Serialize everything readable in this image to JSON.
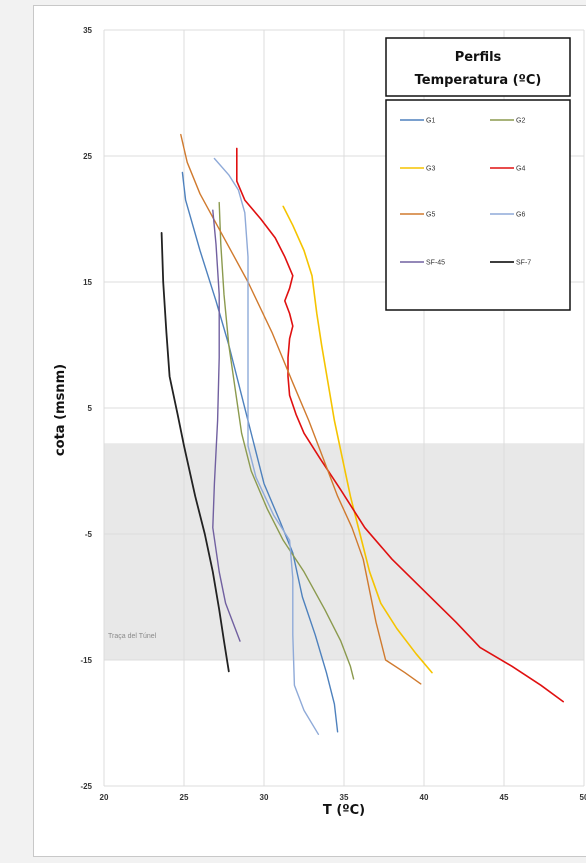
{
  "chart_data": {
    "type": "line",
    "title": "",
    "xlabel": "T  (ºC)",
    "ylabel": "cota (msnm)",
    "xlim": [
      20,
      50
    ],
    "ylim": [
      -25,
      35
    ],
    "x_ticks": [
      "20",
      "25",
      "30",
      "35",
      "40",
      "45",
      "50"
    ],
    "y_ticks": [
      "35",
      "25",
      "15",
      "5",
      "-5",
      "-15",
      "-25"
    ],
    "x_tick_values": [
      20,
      25,
      30,
      35,
      40,
      45,
      50
    ],
    "y_tick_values": [
      35,
      25,
      15,
      5,
      -5,
      -15,
      -25
    ],
    "grid": true,
    "legend": {
      "title_line1": "Perfils",
      "title_line2": "Temperatura (ºC)",
      "placement": "top-right"
    },
    "band": {
      "from": -15,
      "to": 2.2,
      "label": "Traça del Túnel",
      "color": "#e8e8e8"
    },
    "series": [
      {
        "name": "G1",
        "color": "#4e81bd",
        "width": 1.4,
        "points": [
          [
            24.9,
            23.7
          ],
          [
            25.1,
            21.5
          ],
          [
            26.0,
            17.5
          ],
          [
            27.0,
            13.5
          ],
          [
            27.8,
            10.0
          ],
          [
            28.6,
            6.0
          ],
          [
            29.3,
            2.5
          ],
          [
            30.0,
            -1.0
          ],
          [
            31.0,
            -4.0
          ],
          [
            31.8,
            -6.5
          ],
          [
            32.4,
            -10.0
          ],
          [
            33.2,
            -13.0
          ],
          [
            33.9,
            -16.0
          ],
          [
            34.4,
            -18.5
          ],
          [
            34.6,
            -20.7
          ]
        ]
      },
      {
        "name": "G2",
        "color": "#8b9a4e",
        "width": 1.4,
        "points": [
          [
            27.2,
            21.3
          ],
          [
            27.3,
            18.0
          ],
          [
            27.5,
            14.0
          ],
          [
            27.8,
            10.0
          ],
          [
            28.2,
            6.5
          ],
          [
            28.6,
            3.0
          ],
          [
            29.2,
            0.0
          ],
          [
            30.2,
            -3.0
          ],
          [
            31.2,
            -5.5
          ],
          [
            32.5,
            -8.0
          ],
          [
            33.8,
            -11.0
          ],
          [
            34.8,
            -13.5
          ],
          [
            35.4,
            -15.5
          ],
          [
            35.6,
            -16.5
          ]
        ]
      },
      {
        "name": "G3",
        "color": "#f5c400",
        "width": 1.6,
        "points": [
          [
            31.2,
            21.0
          ],
          [
            31.8,
            19.5
          ],
          [
            32.5,
            17.5
          ],
          [
            33.0,
            15.5
          ],
          [
            33.3,
            12.5
          ],
          [
            33.6,
            10.0
          ],
          [
            34.0,
            7.0
          ],
          [
            34.4,
            4.0
          ],
          [
            34.9,
            1.0
          ],
          [
            35.4,
            -2.0
          ],
          [
            36.0,
            -5.0
          ],
          [
            36.6,
            -8.0
          ],
          [
            37.3,
            -10.5
          ],
          [
            38.3,
            -12.5
          ],
          [
            39.5,
            -14.5
          ],
          [
            40.5,
            -16.0
          ]
        ]
      },
      {
        "name": "G4",
        "color": "#e01010",
        "width": 1.6,
        "points": [
          [
            28.3,
            25.6
          ],
          [
            28.3,
            23.0
          ],
          [
            28.8,
            21.5
          ],
          [
            29.8,
            20.0
          ],
          [
            30.7,
            18.5
          ],
          [
            31.3,
            17.0
          ],
          [
            31.8,
            15.5
          ],
          [
            31.6,
            14.5
          ],
          [
            31.3,
            13.5
          ],
          [
            31.6,
            12.5
          ],
          [
            31.8,
            11.5
          ],
          [
            31.6,
            10.5
          ],
          [
            31.5,
            9.0
          ],
          [
            31.5,
            7.5
          ],
          [
            31.6,
            6.0
          ],
          [
            32.0,
            4.5
          ],
          [
            32.5,
            3.0
          ],
          [
            33.5,
            1.0
          ],
          [
            34.8,
            -1.5
          ],
          [
            36.3,
            -4.5
          ],
          [
            38.0,
            -7.0
          ],
          [
            40.0,
            -9.5
          ],
          [
            42.0,
            -12.0
          ],
          [
            43.5,
            -14.0
          ],
          [
            45.5,
            -15.5
          ],
          [
            47.3,
            -17.0
          ],
          [
            48.7,
            -18.3
          ]
        ]
      },
      {
        "name": "G5",
        "color": "#d07a2e",
        "width": 1.4,
        "points": [
          [
            24.8,
            26.7
          ],
          [
            25.2,
            24.5
          ],
          [
            26.0,
            22.0
          ],
          [
            27.5,
            18.5
          ],
          [
            29.0,
            15.0
          ],
          [
            30.5,
            11.0
          ],
          [
            31.8,
            7.0
          ],
          [
            32.8,
            4.0
          ],
          [
            33.7,
            1.0
          ],
          [
            34.6,
            -2.0
          ],
          [
            35.5,
            -4.5
          ],
          [
            36.2,
            -7.0
          ],
          [
            36.6,
            -9.5
          ],
          [
            37.0,
            -12.0
          ],
          [
            37.6,
            -15.0
          ],
          [
            38.8,
            -16.0
          ],
          [
            39.8,
            -16.9
          ]
        ]
      },
      {
        "name": "G6",
        "color": "#8faad8",
        "width": 1.4,
        "points": [
          [
            26.9,
            24.8
          ],
          [
            27.8,
            23.5
          ],
          [
            28.4,
            22.3
          ],
          [
            28.8,
            20.5
          ],
          [
            29.0,
            17.0
          ],
          [
            29.0,
            12.0
          ],
          [
            29.0,
            7.0
          ],
          [
            29.0,
            2.0
          ],
          [
            29.5,
            -0.5
          ],
          [
            30.6,
            -3.5
          ],
          [
            31.6,
            -5.5
          ],
          [
            31.8,
            -8.5
          ],
          [
            31.8,
            -13.0
          ],
          [
            31.9,
            -17.0
          ],
          [
            32.5,
            -19.0
          ],
          [
            33.4,
            -20.9
          ]
        ]
      },
      {
        "name": "SF-45",
        "color": "#7160a0",
        "width": 1.4,
        "points": [
          [
            26.8,
            20.7
          ],
          [
            27.0,
            18.0
          ],
          [
            27.2,
            14.0
          ],
          [
            27.2,
            9.0
          ],
          [
            27.1,
            4.0
          ],
          [
            26.9,
            -1.0
          ],
          [
            26.8,
            -4.5
          ],
          [
            27.2,
            -8.0
          ],
          [
            27.6,
            -10.5
          ],
          [
            28.2,
            -12.5
          ],
          [
            28.5,
            -13.5
          ]
        ]
      },
      {
        "name": "SF-7",
        "color": "#222222",
        "width": 1.8,
        "points": [
          [
            23.6,
            18.9
          ],
          [
            23.7,
            15.0
          ],
          [
            23.9,
            11.0
          ],
          [
            24.1,
            7.5
          ],
          [
            24.6,
            4.5
          ],
          [
            25.0,
            2.0
          ],
          [
            25.7,
            -2.0
          ],
          [
            26.3,
            -5.0
          ],
          [
            26.8,
            -8.0
          ],
          [
            27.2,
            -11.0
          ],
          [
            27.5,
            -13.5
          ],
          [
            27.8,
            -15.9
          ]
        ]
      }
    ]
  }
}
